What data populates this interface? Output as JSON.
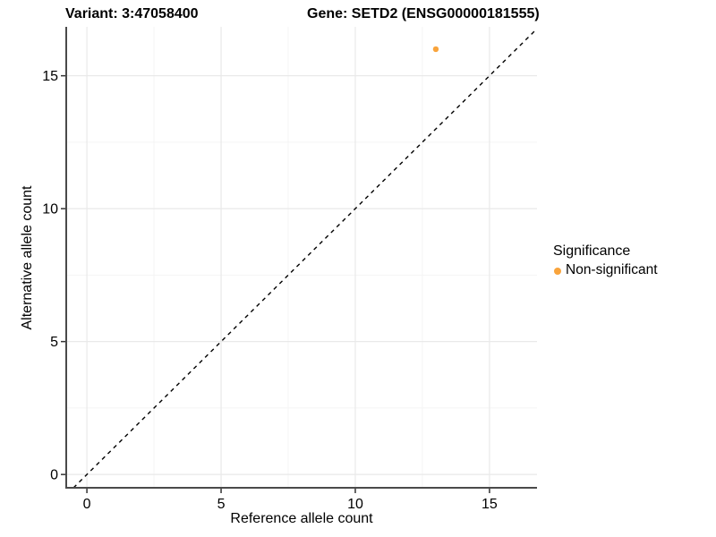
{
  "titles": {
    "variant": "Variant: 3:47058400",
    "gene": "Gene: SETD2 (ENSG00000181555)"
  },
  "legend": {
    "title": "Significance",
    "items": [
      {
        "label": "Non-significant",
        "color": "#F9A43C"
      }
    ]
  },
  "colors": {
    "point_orange": "#F9A43C",
    "axis_line": "#4a4a4a",
    "tick_mark": "#333333",
    "grid_major": "#e9e9e9",
    "grid_minor": "#f4f4f4",
    "reference_line": "#000000",
    "text": "#000000",
    "background": "#ffffff"
  },
  "chart_data": {
    "type": "scatter",
    "title": "Variant: 3:47058400   Gene: SETD2 (ENSG00000181555)",
    "xlabel": "Reference allele count",
    "ylabel": "Alternative allele count",
    "x_ticks": [
      0,
      5,
      10,
      15
    ],
    "y_ticks": [
      0,
      5,
      10,
      15
    ],
    "x_minor_ticks": [
      2.5,
      7.5,
      12.5
    ],
    "y_minor_ticks": [
      2.5,
      7.5,
      12.5
    ],
    "xlim": [
      -0.77,
      16.77
    ],
    "ylim": [
      -0.5,
      16.84
    ],
    "grid": true,
    "legend_position": "right",
    "series": [
      {
        "name": "Non-significant",
        "color": "#F9A43C",
        "points": [
          {
            "x": 13,
            "y": 16
          }
        ]
      }
    ],
    "reference_line": {
      "type": "identity (y = x)",
      "style": "dashed",
      "color": "#000000"
    }
  }
}
